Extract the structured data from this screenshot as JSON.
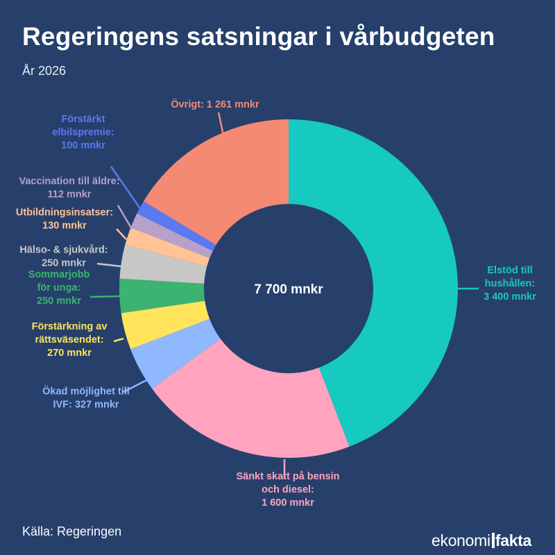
{
  "title": "Regeringens satsningar i vårbudgeten",
  "subtitle": "År 2026",
  "source": "Källa: Regeringen",
  "logo": {
    "part1": "ekonomi",
    "part2": "fakta"
  },
  "chart_data": {
    "type": "pie",
    "variant": "donut",
    "center_label": "7 700 mnkr",
    "total": 7700,
    "unit": "mnkr",
    "slices": [
      {
        "name": "Elstöd till hushållen",
        "value": 3400,
        "color": "#16c9c1",
        "label_lines": [
          "Elstöd till",
          "hushållen:",
          "3 400 mnkr"
        ]
      },
      {
        "name": "Sänkt skatt på bensin och diesel",
        "value": 1600,
        "color": "#ffa3bf",
        "label_lines": [
          "Sänkt skatt på bensin",
          "och diesel:",
          "1 600 mnkr"
        ]
      },
      {
        "name": "Ökad möjlighet till IVF",
        "value": 327,
        "color": "#8fb8ff",
        "label_lines": [
          "Ökad möjlighet till",
          "IVF: 327 mnkr"
        ]
      },
      {
        "name": "Förstärkning av rättsväsendet",
        "value": 270,
        "color": "#ffe45c",
        "label_lines": [
          "Förstärkning av",
          "rättsväsendet:",
          "270 mnkr"
        ]
      },
      {
        "name": "Sommarjobb för unga",
        "value": 250,
        "color": "#3cb371",
        "label_lines": [
          "Sommarjobb",
          "för unga:",
          "250 mnkr"
        ]
      },
      {
        "name": "Hälso- & sjukvård",
        "value": 250,
        "color": "#c8c8c8",
        "label_lines": [
          "Hälso- & sjukvård:",
          "250 mnkr"
        ]
      },
      {
        "name": "Utbildningsinsatser",
        "value": 130,
        "color": "#ffc396",
        "label_lines": [
          "Utbildningsinsatser:",
          "130 mnkr"
        ]
      },
      {
        "name": "Vaccination till äldre",
        "value": 112,
        "color": "#b7a1c9",
        "label_lines": [
          "Vaccination till äldre:",
          "112 mnkr"
        ]
      },
      {
        "name": "Förstärkt elbilspremie",
        "value": 100,
        "color": "#5b79f0",
        "label_lines": [
          "Förstärkt",
          "elbilspremie:",
          "100 mnkr"
        ]
      },
      {
        "name": "Övrigt",
        "value": 1261,
        "color": "#f48a73",
        "label_lines": [
          "Övrigt: 1 261 mnkr"
        ]
      }
    ]
  }
}
